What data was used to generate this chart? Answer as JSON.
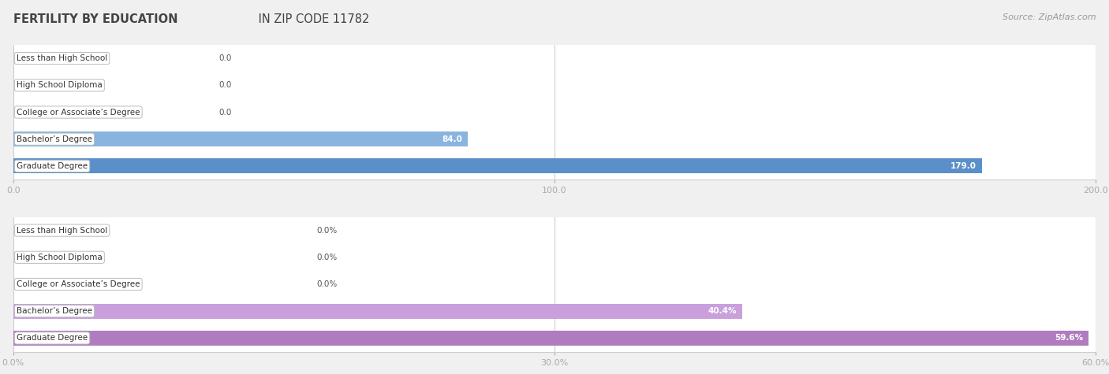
{
  "title_part1": "FERTILITY BY EDUCATION",
  "title_part2": " IN ZIP CODE 11782",
  "source": "Source: ZipAtlas.com",
  "chart1": {
    "categories": [
      "Less than High School",
      "High School Diploma",
      "College or Associate’s Degree",
      "Bachelor’s Degree",
      "Graduate Degree"
    ],
    "values": [
      0.0,
      0.0,
      0.0,
      84.0,
      179.0
    ],
    "value_labels": [
      "0.0",
      "0.0",
      "0.0",
      "84.0",
      "179.0"
    ],
    "bar_color": "#8ab4e0",
    "bar_color_last": "#5b8fc9",
    "xlim": [
      0,
      200
    ],
    "xticks": [
      0.0,
      100.0,
      200.0
    ],
    "xtick_labels": [
      "0.0",
      "100.0",
      "200.0"
    ]
  },
  "chart2": {
    "categories": [
      "Less than High School",
      "High School Diploma",
      "College or Associate’s Degree",
      "Bachelor’s Degree",
      "Graduate Degree"
    ],
    "values": [
      0.0,
      0.0,
      0.0,
      40.4,
      59.6
    ],
    "value_labels": [
      "0.0%",
      "0.0%",
      "0.0%",
      "40.4%",
      "59.6%"
    ],
    "bar_color": "#c9a0dc",
    "bar_color_last": "#b07cc0",
    "xlim": [
      0,
      60
    ],
    "xticks": [
      0.0,
      30.0,
      60.0
    ],
    "xtick_labels": [
      "0.0%",
      "30.0%",
      "60.0%"
    ]
  },
  "bg_color": "#f0f0f0",
  "row_bg_color": "#ffffff",
  "title_color": "#444444",
  "source_color": "#999999",
  "label_box_bg": "#ffffff",
  "label_box_edge": "#bbbbbb",
  "bar_height": 0.55,
  "label_fontsize": 7.5,
  "value_fontsize": 7.5,
  "tick_fontsize": 8,
  "title_fontsize": 10.5
}
